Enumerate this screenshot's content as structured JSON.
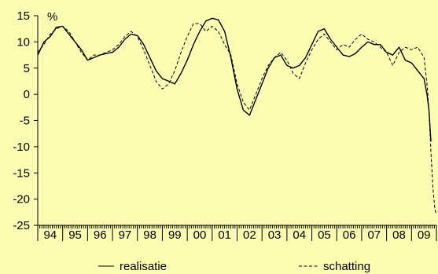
{
  "chart_data": {
    "type": "line",
    "title": "",
    "ylabel": "%",
    "xlabel": "",
    "ylim": [
      -25,
      15
    ],
    "yticks": [
      15,
      10,
      5,
      0,
      -5,
      -10,
      -15,
      -20,
      -25
    ],
    "xlim": [
      1994.0,
      2010.0
    ],
    "x_categories": [
      "94",
      "95",
      "96",
      "97",
      "98",
      "99",
      "00",
      "01",
      "02",
      "03",
      "04",
      "05",
      "06",
      "07",
      "08",
      "09"
    ],
    "grid": false,
    "legend_position": "bottom",
    "series": [
      {
        "name": "realisatie",
        "style": "solid",
        "color": "#000000",
        "points": [
          [
            1994.0,
            7.5
          ],
          [
            1994.25,
            10.0
          ],
          [
            1994.5,
            11.0
          ],
          [
            1994.75,
            12.8
          ],
          [
            1995.0,
            13.0
          ],
          [
            1995.25,
            11.5
          ],
          [
            1995.5,
            10.0
          ],
          [
            1995.75,
            8.5
          ],
          [
            1996.0,
            6.5
          ],
          [
            1996.25,
            7.0
          ],
          [
            1996.5,
            7.5
          ],
          [
            1996.75,
            7.8
          ],
          [
            1997.0,
            8.0
          ],
          [
            1997.25,
            9.0
          ],
          [
            1997.5,
            10.5
          ],
          [
            1997.75,
            11.5
          ],
          [
            1998.0,
            11.2
          ],
          [
            1998.25,
            9.5
          ],
          [
            1998.5,
            7.0
          ],
          [
            1998.75,
            4.5
          ],
          [
            1999.0,
            3.0
          ],
          [
            1999.25,
            2.5
          ],
          [
            1999.5,
            2.0
          ],
          [
            1999.75,
            4.0
          ],
          [
            2000.0,
            6.5
          ],
          [
            2000.25,
            9.5
          ],
          [
            2000.5,
            12.0
          ],
          [
            2000.75,
            14.0
          ],
          [
            2001.0,
            14.5
          ],
          [
            2001.25,
            14.2
          ],
          [
            2001.5,
            12.0
          ],
          [
            2001.75,
            7.0
          ],
          [
            2002.0,
            1.0
          ],
          [
            2002.25,
            -3.0
          ],
          [
            2002.5,
            -4.0
          ],
          [
            2002.75,
            -1.0
          ],
          [
            2003.0,
            2.0
          ],
          [
            2003.25,
            5.0
          ],
          [
            2003.5,
            7.0
          ],
          [
            2003.75,
            7.5
          ],
          [
            2004.0,
            5.5
          ],
          [
            2004.25,
            5.0
          ],
          [
            2004.5,
            5.5
          ],
          [
            2004.75,
            7.0
          ],
          [
            2005.0,
            9.5
          ],
          [
            2005.25,
            12.0
          ],
          [
            2005.5,
            12.5
          ],
          [
            2005.75,
            10.5
          ],
          [
            2006.0,
            9.0
          ],
          [
            2006.25,
            7.5
          ],
          [
            2006.5,
            7.2
          ],
          [
            2006.75,
            7.8
          ],
          [
            2007.0,
            9.0
          ],
          [
            2007.25,
            10.0
          ],
          [
            2007.5,
            9.5
          ],
          [
            2007.75,
            9.5
          ],
          [
            2008.0,
            8.0
          ],
          [
            2008.25,
            7.5
          ],
          [
            2008.5,
            9.0
          ],
          [
            2008.75,
            6.5
          ],
          [
            2009.0,
            6.0
          ],
          [
            2009.25,
            4.5
          ],
          [
            2009.5,
            3.0
          ],
          [
            2009.62,
            0.0
          ],
          [
            2009.7,
            -3.0
          ],
          [
            2009.78,
            -9.0
          ]
        ]
      },
      {
        "name": "schatting",
        "style": "dashed",
        "color": "#000000",
        "points": [
          [
            1994.0,
            8.0
          ],
          [
            1994.25,
            9.5
          ],
          [
            1994.5,
            11.5
          ],
          [
            1994.75,
            12.5
          ],
          [
            1995.0,
            13.0
          ],
          [
            1995.25,
            12.0
          ],
          [
            1995.5,
            10.0
          ],
          [
            1995.75,
            8.0
          ],
          [
            1996.0,
            6.5
          ],
          [
            1996.25,
            7.5
          ],
          [
            1996.5,
            7.5
          ],
          [
            1996.75,
            8.0
          ],
          [
            1997.0,
            8.5
          ],
          [
            1997.25,
            9.5
          ],
          [
            1997.5,
            11.0
          ],
          [
            1997.75,
            12.0
          ],
          [
            1998.0,
            11.0
          ],
          [
            1998.25,
            8.5
          ],
          [
            1998.5,
            5.5
          ],
          [
            1998.75,
            2.5
          ],
          [
            1999.0,
            1.0
          ],
          [
            1999.25,
            2.0
          ],
          [
            1999.5,
            4.5
          ],
          [
            1999.75,
            8.0
          ],
          [
            2000.0,
            11.0
          ],
          [
            2000.25,
            13.5
          ],
          [
            2000.5,
            13.5
          ],
          [
            2000.75,
            12.0
          ],
          [
            2001.0,
            13.0
          ],
          [
            2001.25,
            12.0
          ],
          [
            2001.5,
            9.5
          ],
          [
            2001.75,
            7.5
          ],
          [
            2002.0,
            2.0
          ],
          [
            2002.25,
            -1.5
          ],
          [
            2002.5,
            -3.0
          ],
          [
            2002.75,
            0.0
          ],
          [
            2003.0,
            3.0
          ],
          [
            2003.25,
            5.5
          ],
          [
            2003.5,
            7.0
          ],
          [
            2003.75,
            8.0
          ],
          [
            2004.0,
            6.5
          ],
          [
            2004.25,
            4.0
          ],
          [
            2004.5,
            3.0
          ],
          [
            2004.75,
            6.0
          ],
          [
            2005.0,
            8.5
          ],
          [
            2005.25,
            10.5
          ],
          [
            2005.5,
            11.5
          ],
          [
            2005.75,
            10.0
          ],
          [
            2006.0,
            8.5
          ],
          [
            2006.25,
            9.5
          ],
          [
            2006.5,
            9.0
          ],
          [
            2006.75,
            10.5
          ],
          [
            2007.0,
            11.5
          ],
          [
            2007.25,
            10.5
          ],
          [
            2007.5,
            10.0
          ],
          [
            2007.75,
            9.0
          ],
          [
            2008.0,
            8.0
          ],
          [
            2008.25,
            5.5
          ],
          [
            2008.5,
            8.0
          ],
          [
            2008.75,
            9.0
          ],
          [
            2009.0,
            8.5
          ],
          [
            2009.25,
            9.0
          ],
          [
            2009.5,
            7.0
          ],
          [
            2009.62,
            2.0
          ],
          [
            2009.7,
            -3.0
          ],
          [
            2009.78,
            -11.0
          ],
          [
            2009.86,
            -18.0
          ],
          [
            2009.94,
            -22.0
          ],
          [
            2010.0,
            -23.0
          ]
        ]
      }
    ]
  }
}
